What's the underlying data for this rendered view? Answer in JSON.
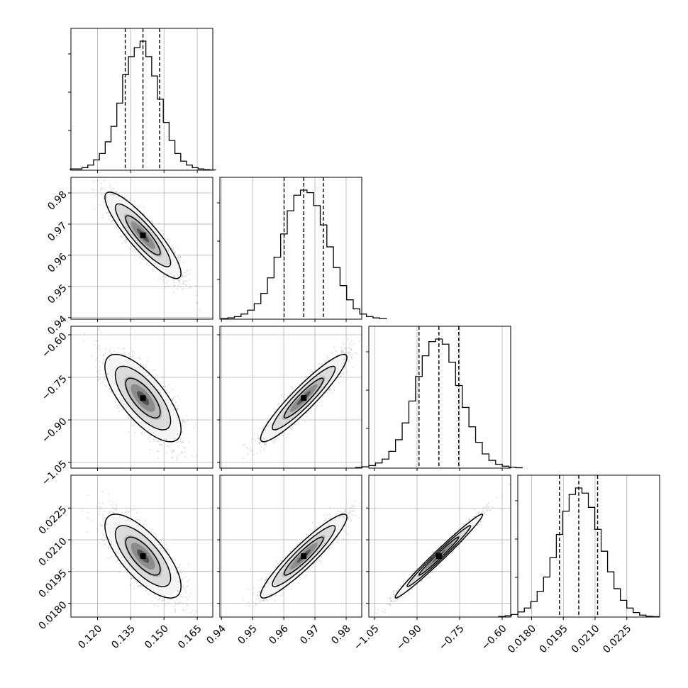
{
  "chart_data": {
    "type": "corner",
    "grid": true,
    "quantile_lines": "dashed",
    "contour_levels": 3,
    "parameters": [
      {
        "key": "p1",
        "range": [
          0.108,
          0.172
        ],
        "ticks": [
          "0.120",
          "0.135",
          "0.150",
          "0.165"
        ],
        "tick_values": [
          0.12,
          0.135,
          0.15,
          0.165
        ],
        "quantiles": [
          0.1325,
          0.1405,
          0.148
        ],
        "mean": 0.1405,
        "sd": 0.0078,
        "histogram_counts": [
          1,
          1,
          2,
          4,
          8,
          13,
          22,
          34,
          52,
          74,
          88,
          95,
          100,
          88,
          73,
          55,
          37,
          23,
          13,
          7,
          4,
          2,
          1,
          0.5,
          0.2
        ]
      },
      {
        "key": "p2",
        "range": [
          0.9395,
          0.985
        ],
        "ticks": [
          "0.94",
          "0.95",
          "0.96",
          "0.97",
          "0.98"
        ],
        "tick_values": [
          0.94,
          0.95,
          0.96,
          0.97,
          0.98
        ],
        "quantiles": [
          0.9601,
          0.9664,
          0.9727
        ],
        "mean": 0.9664,
        "sd": 0.0063,
        "histogram_counts": [
          0.5,
          1,
          2,
          4,
          7,
          12,
          20,
          32,
          48,
          66,
          84,
          96,
          100,
          98,
          88,
          73,
          56,
          40,
          26,
          15,
          8,
          4,
          2,
          1,
          0.5
        ]
      },
      {
        "key": "p3",
        "range": [
          -1.07,
          -0.57
        ],
        "ticks": [
          "-1.05",
          "-0.90",
          "-0.75",
          "-0.60"
        ],
        "tick_values": [
          -1.05,
          -0.9,
          -0.75,
          -0.6
        ],
        "quantiles": [
          -0.893,
          -0.823,
          -0.753
        ],
        "mean": -0.823,
        "sd": 0.07,
        "histogram_counts": [
          0.5,
          1,
          2,
          4,
          7,
          13,
          22,
          35,
          52,
          71,
          87,
          98,
          100,
          96,
          82,
          64,
          47,
          32,
          20,
          11,
          6,
          3,
          1.5,
          0.7,
          0.3
        ]
      },
      {
        "key": "p4",
        "range": [
          0.01735,
          0.02405
        ],
        "ticks": [
          "0.0180",
          "0.0195",
          "0.0210",
          "0.0225"
        ],
        "tick_values": [
          0.018,
          0.0195,
          0.021,
          0.0225
        ],
        "quantiles": [
          0.01932,
          0.02023,
          0.02112
        ],
        "mean": 0.02023,
        "sd": 0.0009,
        "histogram_counts": [
          0.5,
          1,
          2,
          4,
          7,
          12,
          20,
          31,
          46,
          64,
          82,
          95,
          100,
          96,
          85,
          68,
          51,
          35,
          22,
          13,
          7,
          3.5,
          1.5,
          0.7,
          0.3
        ]
      }
    ],
    "correlations": {
      "p2|p1": -0.88,
      "p3|p1": -0.72,
      "p3|p2": 0.93,
      "p4|p1": -0.72,
      "p4|p2": 0.93,
      "p4|p3": 0.985
    }
  }
}
